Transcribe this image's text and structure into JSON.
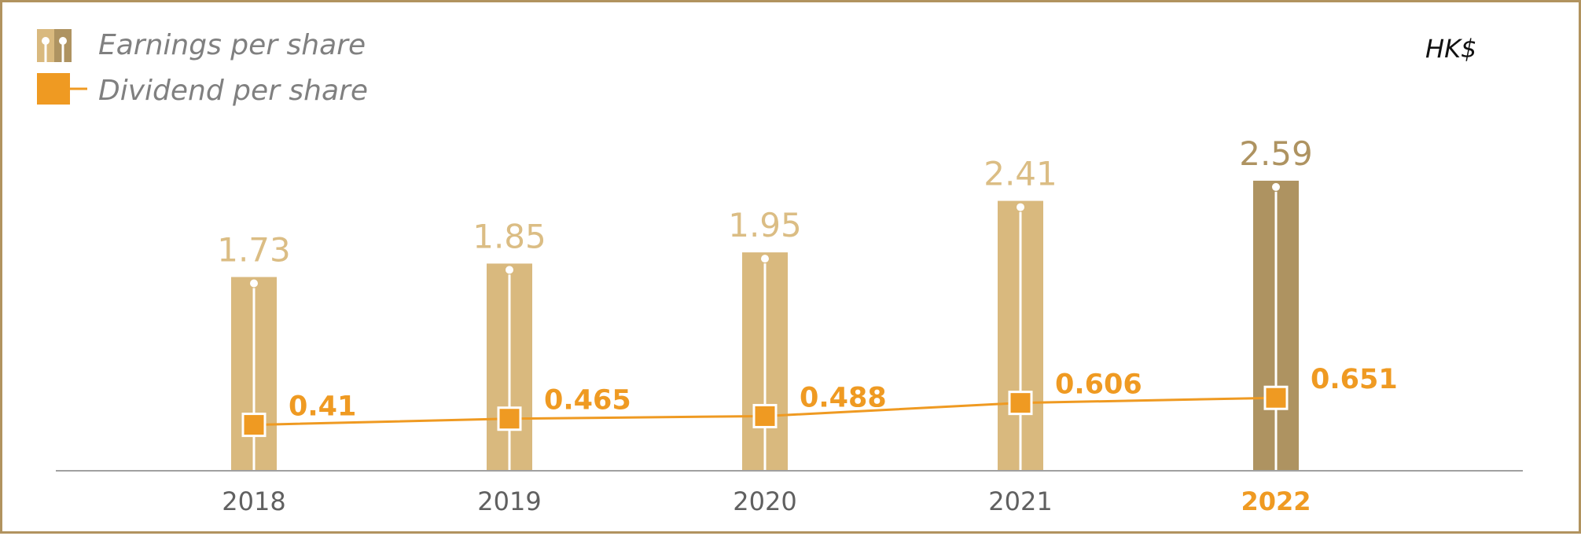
{
  "colors": {
    "eps_bar": "#d9b97e",
    "eps_bar_highlight": "#ae9361",
    "eps_label": "#dbbd84",
    "eps_label_highlight": "#ae9361",
    "dividend": "#ef9a22",
    "axis": "#a0a0a0",
    "tick": "#606060",
    "tick_highlight": "#ef9a22",
    "border": "#b1935f"
  },
  "legend": {
    "eps_label": "Earnings per share",
    "dps_label": "Dividend per share"
  },
  "unit": "HK$",
  "chart_data": {
    "type": "bar",
    "categories": [
      "2018",
      "2019",
      "2020",
      "2021",
      "2022"
    ],
    "highlight_category": "2022",
    "series": [
      {
        "name": "Earnings per share",
        "type": "bar",
        "values": [
          1.73,
          1.85,
          1.95,
          2.41,
          2.59
        ],
        "labels": [
          "1.73",
          "1.85",
          "1.95",
          "2.41",
          "2.59"
        ]
      },
      {
        "name": "Dividend per share",
        "type": "line",
        "values": [
          0.41,
          0.465,
          0.488,
          0.606,
          0.651
        ],
        "labels": [
          "0.41",
          "0.465",
          "0.488",
          "0.606",
          "0.651"
        ]
      }
    ],
    "unit": "HK$",
    "legend_position": "top-left",
    "grid": false
  }
}
